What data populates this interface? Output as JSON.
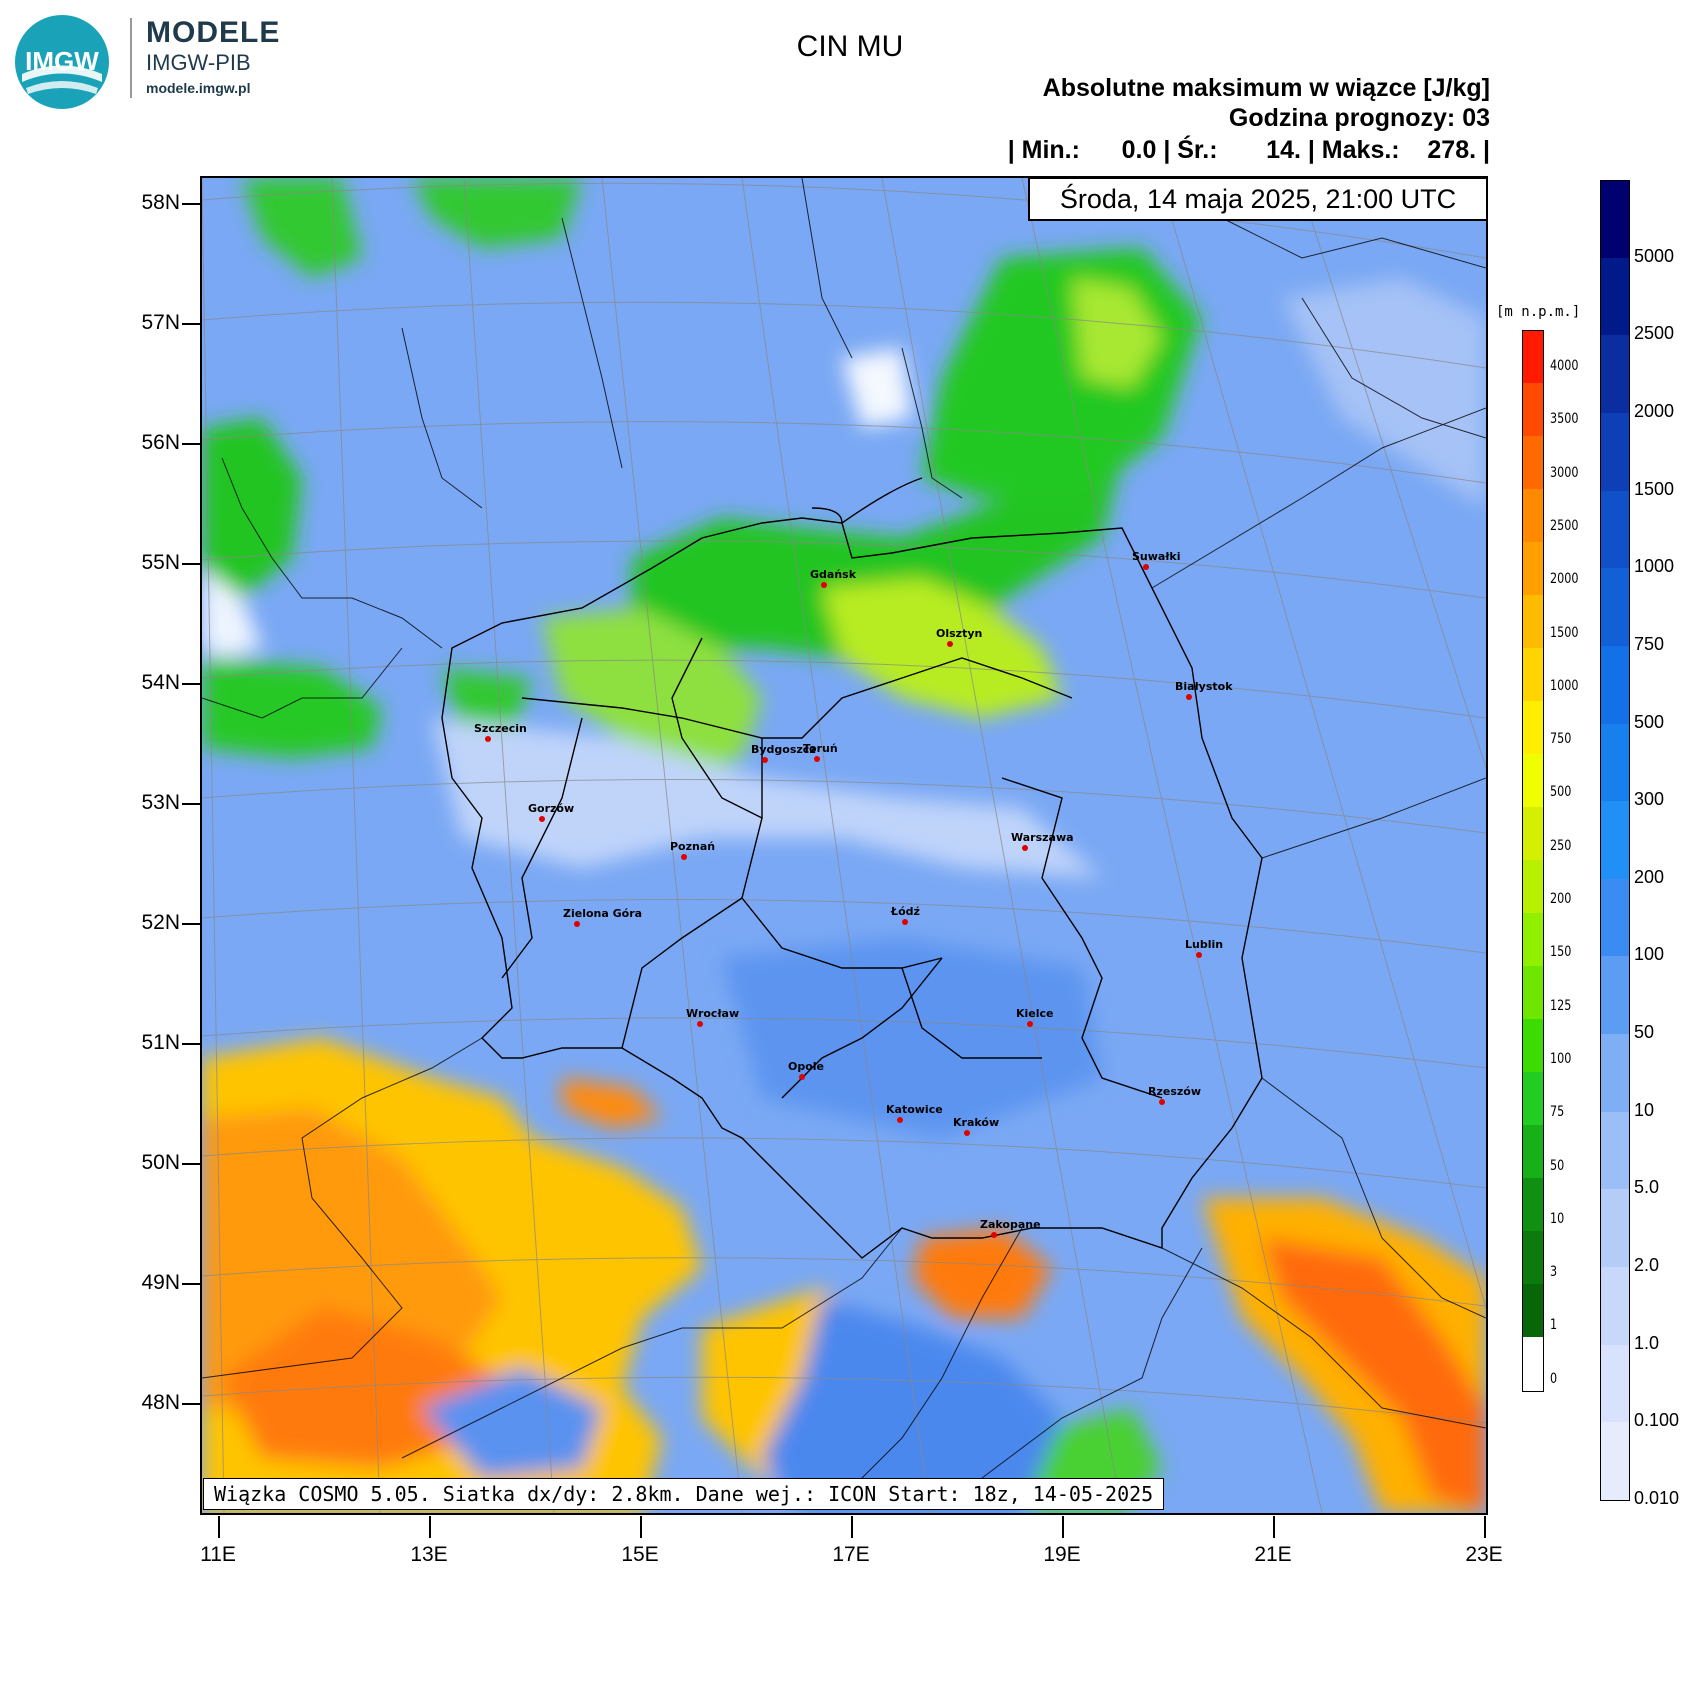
{
  "logo": {
    "badge": "IMGW",
    "brand": "MODELE",
    "org": "IMGW-PIB",
    "site": "modele.imgw.pl"
  },
  "title": "CIN MU",
  "subtitle": "Absolutne maksimum w wiązce [J/kg]",
  "forecast_hour": "Godzina prognozy: 03",
  "stats": "| Min.:      0.0 | Śr.:       14. | Maks.:    278. |",
  "date": "Środa, 14 maja 2025, 21:00 UTC",
  "footer": "Wiązka COSMO 5.05. Siatka dx/dy: 2.8km. Dane wej.: ICON Start: 18z, 14-05-2025",
  "lat_labels": [
    "58N",
    "57N",
    "56N",
    "55N",
    "54N",
    "53N",
    "52N",
    "51N",
    "50N",
    "49N",
    "48N"
  ],
  "lon_labels": [
    "11E",
    "13E",
    "15E",
    "17E",
    "19E",
    "21E",
    "23E"
  ],
  "cities": [
    {
      "name": "Gdańsk"
    },
    {
      "name": "Suwałki"
    },
    {
      "name": "Olsztyn"
    },
    {
      "name": "Białystok"
    },
    {
      "name": "Szczecin"
    },
    {
      "name": "Bydgoszcz"
    },
    {
      "name": "Toruń"
    },
    {
      "name": "Gorzów"
    },
    {
      "name": "Poznań"
    },
    {
      "name": "Warszawa"
    },
    {
      "name": "Zielona Góra"
    },
    {
      "name": "Łódź"
    },
    {
      "name": "Lublin"
    },
    {
      "name": "Wrocław"
    },
    {
      "name": "Kielce"
    },
    {
      "name": "Opole"
    },
    {
      "name": "Rzeszów"
    },
    {
      "name": "Katowice"
    },
    {
      "name": "Kraków"
    },
    {
      "name": "Zakopane"
    }
  ],
  "elevation_scale": {
    "unit": "[m n.p.m.]",
    "labels": [
      "4000",
      "3500",
      "3000",
      "2500",
      "2000",
      "1500",
      "1000",
      "750",
      "500",
      "250",
      "200",
      "150",
      "125",
      "100",
      "75",
      "50",
      "10",
      "3",
      "1",
      "0"
    ],
    "colors": [
      "#ff1a00",
      "#ff4a00",
      "#ff6a00",
      "#ff8a00",
      "#ffa000",
      "#ffbb00",
      "#ffd400",
      "#ffee00",
      "#f0ff00",
      "#d4f000",
      "#b8f000",
      "#90f000",
      "#6ee600",
      "#3cdc00",
      "#22cc22",
      "#18b018",
      "#109010",
      "#0c7a0c",
      "#086608",
      "#ffffff"
    ]
  },
  "cin_scale": {
    "labels": [
      "5000",
      "2500",
      "2000",
      "1500",
      "1000",
      "750",
      "500",
      "300",
      "200",
      "100",
      "50",
      "10",
      "5.0",
      "2.0",
      "1.0",
      "0.100",
      "0.010"
    ],
    "colors": [
      "#00006e",
      "#001a8a",
      "#0a2ea0",
      "#0e3fb6",
      "#1050c8",
      "#1260d8",
      "#1470e6",
      "#1880ee",
      "#2090f6",
      "#3a8cf2",
      "#5c9cf2",
      "#7eaef4",
      "#9cbef6",
      "#b4ccf8",
      "#c8d8fa",
      "#d8e2fc",
      "#e6ecfe"
    ]
  },
  "colors": {
    "sea": "#7aa8f4",
    "lowland": "#6f9ff0",
    "green": "#2ec82e",
    "lightgreen": "#a8e830",
    "yellow": "#ffd400",
    "orange": "#ff8a1a",
    "red": "#ff4a1a"
  }
}
